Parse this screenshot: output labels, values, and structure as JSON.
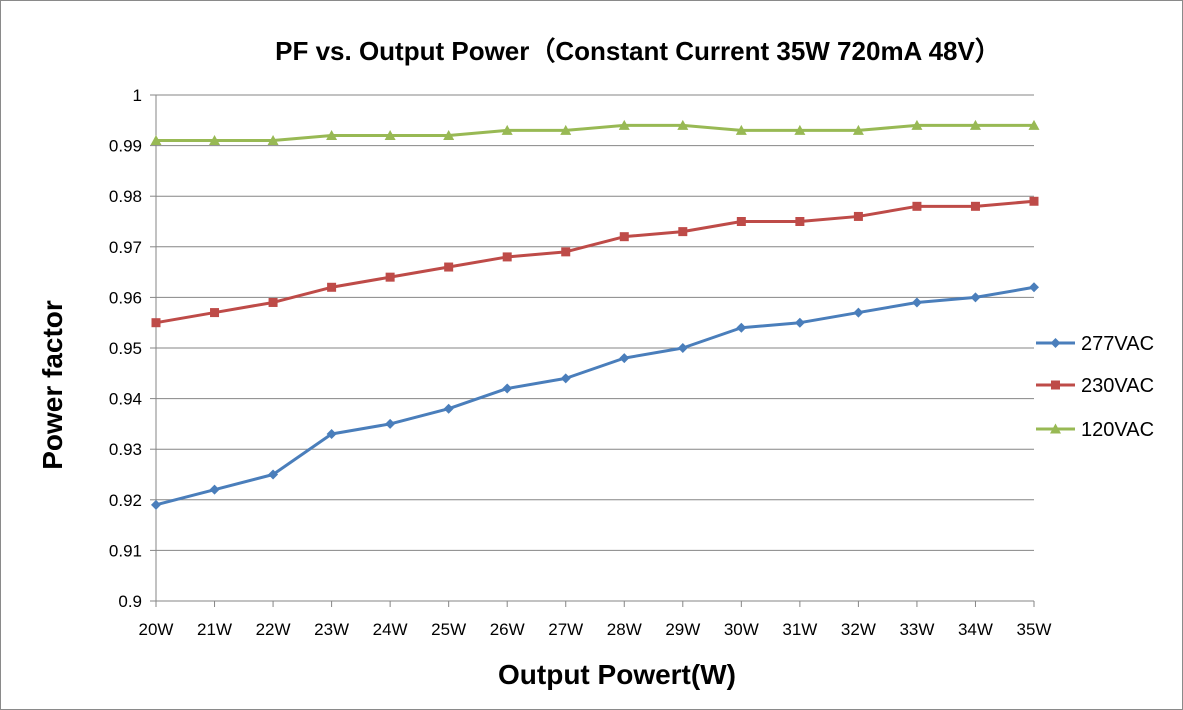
{
  "chart_data": {
    "type": "line",
    "title": "PF vs. Output Power（Constant Current 35W 720mA 48V）",
    "xlabel": "Output Powert(W)",
    "ylabel": "Power factor",
    "categories": [
      "20W",
      "21W",
      "22W",
      "23W",
      "24W",
      "25W",
      "26W",
      "27W",
      "28W",
      "29W",
      "30W",
      "31W",
      "32W",
      "33W",
      "34W",
      "35W"
    ],
    "ylim": [
      0.9,
      1
    ],
    "yticks": [
      "0.9",
      "0.91",
      "0.92",
      "0.93",
      "0.94",
      "0.95",
      "0.96",
      "0.97",
      "0.98",
      "0.99",
      "1"
    ],
    "grid": true,
    "legend_position": "right",
    "series": [
      {
        "name": "277VAC",
        "color": "#4a7ebb",
        "marker": "diamond",
        "values": [
          0.919,
          0.922,
          0.925,
          0.933,
          0.935,
          0.938,
          0.942,
          0.944,
          0.948,
          0.95,
          0.954,
          0.955,
          0.957,
          0.959,
          0.96,
          0.962
        ]
      },
      {
        "name": "230VAC",
        "color": "#be4b48",
        "marker": "square",
        "values": [
          0.955,
          0.957,
          0.959,
          0.962,
          0.964,
          0.966,
          0.968,
          0.969,
          0.972,
          0.973,
          0.975,
          0.975,
          0.976,
          0.978,
          0.978,
          0.979
        ]
      },
      {
        "name": "120VAC",
        "color": "#98b954",
        "marker": "triangle",
        "values": [
          0.991,
          0.991,
          0.991,
          0.992,
          0.992,
          0.992,
          0.993,
          0.993,
          0.994,
          0.994,
          0.993,
          0.993,
          0.993,
          0.994,
          0.994,
          0.994
        ]
      }
    ]
  }
}
